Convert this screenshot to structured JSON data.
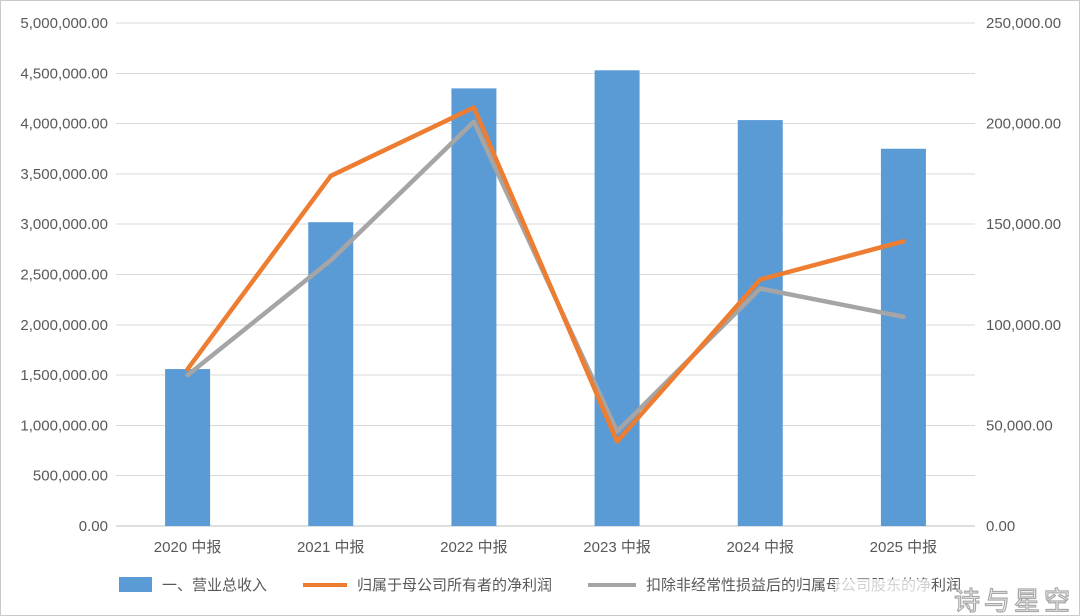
{
  "chart_data": {
    "type": "bar",
    "subtype": "combo-bar-line-dual-axis",
    "categories": [
      "2020 中报",
      "2021 中报",
      "2022 中报",
      "2023 中报",
      "2024 中报",
      "2025 中报"
    ],
    "series": [
      {
        "name": "一、营业总收入",
        "type": "bar",
        "axis": "left",
        "color": "#5B9BD5",
        "values": [
          1560000,
          3020000,
          4350000,
          4530000,
          4035000,
          3750000
        ]
      },
      {
        "name": "归属于母公司所有者的净利润",
        "type": "line",
        "axis": "right",
        "color": "#ED7D31",
        "values": [
          78000,
          174000,
          208000,
          42000,
          122500,
          141500
        ]
      },
      {
        "name": "扣除非经常性损益后的归属母公司股东的净利润",
        "type": "line",
        "axis": "right",
        "color": "#A5A5A5",
        "values": [
          75000,
          132000,
          201000,
          47000,
          118000,
          104000
        ]
      }
    ],
    "left_axis": {
      "min": 0,
      "max": 5000000,
      "step": 500000,
      "tick_labels_top_to_bottom": [
        "5,000,000.00",
        "4,500,000.00",
        "4,000,000.00",
        "3,500,000.00",
        "3,000,000.00",
        "2,500,000.00",
        "2,000,000.00",
        "1,500,000.00",
        "1,000,000.00",
        "500,000.00",
        "0.00"
      ]
    },
    "right_axis": {
      "min": 0,
      "max": 250000,
      "step": 50000,
      "tick_labels_top_to_bottom": [
        "250,000.00",
        "200,000.00",
        "150,000.00",
        "100,000.00",
        "50,000.00",
        "0.00"
      ]
    },
    "grid": true,
    "legend_position": "bottom",
    "title": ""
  },
  "legend": {
    "items": [
      {
        "label": "一、营业总收入",
        "marker": "bar-swatch",
        "color": "#5B9BD5"
      },
      {
        "label": "归属于母公司所有者的净利润",
        "marker": "line-swatch",
        "color": "#ED7D31"
      },
      {
        "label": "扣除非经常性损益后的归属母公司股东的净利润",
        "marker": "line-swatch",
        "color": "#A5A5A5"
      }
    ]
  },
  "watermark": {
    "text": "诗与星空"
  },
  "colors": {
    "bar_blue": "#5B9BD5",
    "line_orange": "#ED7D31",
    "line_gray": "#A5A5A5",
    "gridline": "#D9D9D9",
    "axis_line": "#BFBFBF",
    "axis_text": "#595959",
    "background": "#FFFFFF"
  }
}
